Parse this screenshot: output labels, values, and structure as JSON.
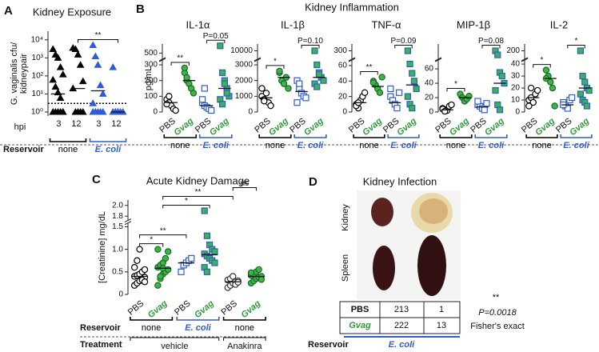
{
  "chart_data": [
    {
      "type": "dot",
      "panel": "A",
      "title": "Kidney Exposure",
      "y_label": [
        "G. vaginalis cfu/",
        "kidneypair"
      ],
      "x_label": "hpi",
      "log": true,
      "ylim": [
        0.6,
        30000
      ],
      "yticks": [
        {
          "value": 1,
          "label": "10⁰"
        },
        {
          "value": 10,
          "label": "10¹"
        },
        {
          "value": 100,
          "label": "10²"
        },
        {
          "value": 1000,
          "label": "10³"
        },
        {
          "value": 10000,
          "label": "10⁴"
        }
      ],
      "detection_limit": 3,
      "row_label": "Reservoir",
      "groups": [
        {
          "label": "3",
          "marker": "triangle",
          "fill": "#000000",
          "stroke": "#000000",
          "values": [
            3000,
            1500,
            1000,
            300,
            120,
            60,
            25,
            12,
            6,
            1,
            1,
            1,
            1,
            1,
            1
          ],
          "center": 10
        },
        {
          "label": "12",
          "marker": "triangle",
          "fill": "#000000",
          "stroke": "#000000",
          "values": [
            3500,
            3000,
            1500,
            400,
            50,
            20,
            1,
            1,
            1,
            1
          ],
          "center": 20
        },
        {
          "label": "3",
          "marker": "triangle",
          "fill": "#2e5bd6",
          "stroke": "#2e5bd6",
          "values": [
            5000,
            1200,
            400,
            30,
            10,
            3,
            1,
            1,
            1,
            1,
            1,
            1
          ],
          "center": 15
        },
        {
          "label": "12",
          "marker": "triangle",
          "fill": "#2e5bd6",
          "stroke": "#2e5bd6",
          "values": [
            300,
            1,
            1,
            1,
            1,
            1,
            1,
            1
          ],
          "center": 1
        }
      ],
      "reservoirs": [
        "none",
        "E. coli"
      ],
      "reservoir_colors": [
        "#000000",
        "#2e5bd6"
      ],
      "significance": [
        {
          "groups": [
            1,
            3
          ],
          "label": "**"
        }
      ]
    },
    {
      "type": "dot",
      "title": "IL-1α",
      "ylim": [
        0,
        600
      ],
      "axis_break": [
        320,
        450
      ],
      "yticks": [
        0,
        100,
        200,
        300,
        500
      ],
      "groups": [
        {
          "label": "PBS",
          "marker": "circle",
          "fill": "#ffffff",
          "stroke": "#000000",
          "values": [
            80,
            60,
            40,
            20,
            10,
            50,
            100
          ],
          "center": 60
        },
        {
          "label": "Gvag",
          "italic": true,
          "label_color": "#2e9a3a",
          "marker": "circle",
          "fill": "#3cb54a",
          "stroke": "#1a6b22",
          "values": [
            250,
            200,
            180,
            150,
            120,
            280,
            220
          ],
          "center": 200
        },
        {
          "label": "PBS",
          "marker": "square",
          "fill": "#ffffff",
          "stroke": "#2e5bd6",
          "values": [
            60,
            40,
            30,
            20,
            10,
            80,
            150
          ],
          "center": 40
        },
        {
          "label": "Gvag",
          "italic": true,
          "label_color": "#2e9a3a",
          "marker": "square",
          "fill": "#3cb54a",
          "stroke": "#2e5bd6",
          "values": [
            580,
            250,
            200,
            150,
            100,
            80,
            50,
            180,
            120
          ],
          "center": 150
        }
      ],
      "reservoirs": [
        "none",
        "E. coli"
      ],
      "reservoir_colors": [
        "#000000",
        "#2e5bd6"
      ],
      "significance": [
        {
          "groups": [
            0,
            1
          ],
          "label": "**"
        },
        {
          "groups": [
            2,
            3
          ],
          "label": "P=0.05"
        }
      ]
    },
    {
      "type": "dot",
      "title": "IL-1β",
      "ylim": [
        0,
        11000
      ],
      "axis_break": [
        3200,
        9000
      ],
      "yticks": [
        0,
        1000,
        2000,
        3000,
        10000
      ],
      "groups": [
        {
          "label": "PBS",
          "marker": "circle",
          "fill": "#ffffff",
          "stroke": "#000000",
          "values": [
            1000,
            800,
            1200,
            600,
            400,
            1500,
            700
          ],
          "center": 900
        },
        {
          "label": "Gvag",
          "italic": true,
          "label_color": "#2e9a3a",
          "marker": "circle",
          "fill": "#3cb54a",
          "stroke": "#1a6b22",
          "values": [
            2500,
            2000,
            1800,
            2200,
            1500,
            2600
          ],
          "center": 2200
        },
        {
          "label": "PBS",
          "marker": "square",
          "fill": "#ffffff",
          "stroke": "#2e5bd6",
          "values": [
            2000,
            1500,
            1200,
            1000,
            900,
            600,
            1800
          ],
          "center": 1300
        },
        {
          "label": "Gvag",
          "italic": true,
          "label_color": "#2e9a3a",
          "marker": "square",
          "fill": "#3cb54a",
          "stroke": "#2e5bd6",
          "values": [
            10000,
            3000,
            2500,
            2200,
            2000,
            1800,
            1600,
            2400
          ],
          "center": 2200
        }
      ],
      "reservoirs": [
        "none",
        "E. coli"
      ],
      "reservoir_colors": [
        "#000000",
        "#2e5bd6"
      ],
      "significance": [
        {
          "groups": [
            0,
            1
          ],
          "label": "*"
        },
        {
          "groups": [
            2,
            3
          ],
          "label": "P=0.10"
        }
      ]
    },
    {
      "type": "dot",
      "title": "TNF-α",
      "ylim": [
        0,
        350
      ],
      "axis_break": [
        65,
        250
      ],
      "yticks": [
        0,
        20,
        40,
        60,
        300
      ],
      "groups": [
        {
          "label": "PBS",
          "marker": "circle",
          "fill": "#ffffff",
          "stroke": "#000000",
          "values": [
            10,
            5,
            15,
            20,
            25,
            8,
            12
          ],
          "center": 12
        },
        {
          "label": "Gvag",
          "italic": true,
          "label_color": "#2e9a3a",
          "marker": "circle",
          "fill": "#3cb54a",
          "stroke": "#1a6b22",
          "values": [
            40,
            35,
            30,
            25,
            45,
            38
          ],
          "center": 33
        },
        {
          "label": "PBS",
          "marker": "square",
          "fill": "#ffffff",
          "stroke": "#2e5bd6",
          "values": [
            20,
            15,
            10,
            5,
            25,
            30
          ],
          "center": 12
        },
        {
          "label": "Gvag",
          "italic": true,
          "label_color": "#2e9a3a",
          "marker": "square",
          "fill": "#3cb54a",
          "stroke": "#2e5bd6",
          "values": [
            300,
            62,
            50,
            40,
            30,
            20,
            10,
            5
          ],
          "center": 35
        }
      ],
      "reservoirs": [
        "none",
        "E. coli"
      ],
      "reservoir_colors": [
        "#000000",
        "#2e5bd6"
      ],
      "significance": [
        {
          "groups": [
            0,
            1
          ],
          "label": "**"
        },
        {
          "groups": [
            2,
            3
          ],
          "label": "P=0.09"
        }
      ]
    },
    {
      "type": "dot",
      "title": "MIP-1β",
      "ylim": [
        0,
        100
      ],
      "axis_break": [
        70,
        90
      ],
      "yticks": [
        0,
        20,
        40,
        60
      ],
      "groups": [
        {
          "label": "PBS",
          "marker": "circle",
          "fill": "#ffffff",
          "stroke": "#000000",
          "values": [
            5,
            3,
            2,
            8,
            10,
            4,
            1
          ],
          "center": 3
        },
        {
          "label": "Gvag",
          "italic": true,
          "label_color": "#2e9a3a",
          "marker": "circle",
          "fill": "#3cb54a",
          "stroke": "#1a6b22",
          "values": [
            25,
            20,
            15,
            18,
            22
          ],
          "center": 20
        },
        {
          "label": "PBS",
          "marker": "square",
          "fill": "#ffffff",
          "stroke": "#2e5bd6",
          "values": [
            10,
            8,
            5,
            3,
            12,
            15
          ],
          "center": 7
        },
        {
          "label": "Gvag",
          "italic": true,
          "label_color": "#2e9a3a",
          "marker": "square",
          "fill": "#3cb54a",
          "stroke": "#2e5bd6",
          "values": [
            95,
            92,
            55,
            50,
            40,
            30,
            10,
            3
          ],
          "center": 40
        }
      ],
      "reservoirs": [
        "none",
        "E. coli"
      ],
      "reservoir_colors": [
        "#000000",
        "#2e5bd6"
      ],
      "significance": [
        {
          "groups": [
            0,
            1
          ],
          "label": "*"
        },
        {
          "groups": [
            2,
            3
          ],
          "label": "P=0.08"
        }
      ]
    },
    {
      "type": "dot",
      "title": "IL-2",
      "ylim": [
        0,
        220
      ],
      "axis_break": [
        42,
        180
      ],
      "yticks": [
        0,
        10,
        20,
        30,
        40,
        200
      ],
      "groups": [
        {
          "label": "PBS",
          "marker": "circle",
          "fill": "#ffffff",
          "stroke": "#000000",
          "values": [
            10,
            12,
            8,
            15,
            18,
            5,
            20
          ],
          "center": 12
        },
        {
          "label": "Gvag",
          "italic": true,
          "label_color": "#2e9a3a",
          "marker": "circle",
          "fill": "#3cb54a",
          "stroke": "#1a6b22",
          "values": [
            35,
            30,
            25,
            20,
            5,
            28
          ],
          "center": 28
        },
        {
          "label": "PBS",
          "marker": "square",
          "fill": "#ffffff",
          "stroke": "#2e5bd6",
          "values": [
            8,
            5,
            3,
            10,
            12,
            6
          ],
          "center": 6
        },
        {
          "label": "Gvag",
          "italic": true,
          "label_color": "#2e9a3a",
          "marker": "square",
          "fill": "#3cb54a",
          "stroke": "#2e5bd6",
          "values": [
            200,
            30,
            25,
            20,
            18,
            15,
            10,
            8,
            5
          ],
          "center": 20
        }
      ],
      "reservoirs": [
        "none",
        "E. coli"
      ],
      "reservoir_colors": [
        "#000000",
        "#2e5bd6"
      ],
      "significance": [
        {
          "groups": [
            0,
            1
          ],
          "label": "*"
        },
        {
          "groups": [
            2,
            3
          ],
          "label": "*"
        }
      ]
    },
    {
      "type": "dot",
      "panel": "C",
      "title": "Acute Kidney Damage",
      "y_label": [
        "[Creatinine] mg/dL"
      ],
      "ylim": [
        0,
        2.1
      ],
      "axis_break": [
        1.55,
        1.75
      ],
      "yticks": [
        0,
        0.5,
        {
          "value": 1,
          "label": "1.0"
        },
        {
          "value": 1.5,
          "label": "1.5"
        },
        {
          "value": 1.8,
          "label": "1.8"
        },
        {
          "value": 2,
          "label": "2.0"
        }
      ],
      "groups": [
        {
          "label": "PBS",
          "marker": "circle",
          "fill": "#ffffff",
          "stroke": "#000000",
          "values": [
            0.2,
            0.25,
            0.3,
            0.35,
            0.38,
            0.4,
            0.42,
            0.45,
            0.5,
            0.55,
            0.6,
            0.75,
            1.0,
            0.32,
            0.28
          ],
          "center": 0.4
        },
        {
          "label": "Gvag",
          "italic": true,
          "label_color": "#2e9a3a",
          "marker": "circle",
          "fill": "#3cb54a",
          "stroke": "#1a6b22",
          "values": [
            0.2,
            0.35,
            0.45,
            0.5,
            0.55,
            0.6,
            0.65,
            0.7,
            0.8,
            0.95,
            1.0,
            0.4,
            0.58
          ],
          "center": 0.58
        },
        {
          "label": "PBS",
          "marker": "square",
          "fill": "#ffffff",
          "stroke": "#2e5bd6",
          "values": [
            0.5,
            0.65,
            0.7,
            0.75,
            0.8
          ],
          "center": 0.7
        },
        {
          "label": "Gvag",
          "italic": true,
          "label_color": "#2e9a3a",
          "marker": "square",
          "fill": "#3cb54a",
          "stroke": "#2e5bd6",
          "values": [
            1.9,
            1.3,
            1.1,
            1.0,
            0.95,
            0.9,
            0.85,
            0.8,
            0.75,
            0.7,
            0.6,
            0.5
          ],
          "center": 0.88
        },
        {
          "label": "PBS",
          "marker": "circle",
          "fill": "#ffffff",
          "stroke": "#333333",
          "values": [
            0.15,
            0.2,
            0.25,
            0.28,
            0.3,
            0.32,
            0.35,
            0.4,
            0.22,
            0.27
          ],
          "center": 0.28
        },
        {
          "label": "Gvag",
          "italic": true,
          "label_color": "#2e9a3a",
          "marker": "circle",
          "fill": "#3cb54a",
          "stroke": "#1a6b22",
          "values": [
            0.25,
            0.3,
            0.35,
            0.38,
            0.4,
            0.42,
            0.45,
            0.5,
            0.55,
            0.33,
            0.48
          ],
          "center": 0.4
        }
      ],
      "reservoirs": [
        "none",
        "E. coli",
        "none"
      ],
      "reservoir_colors": [
        "#000000",
        "#2e5bd6",
        "#000000"
      ],
      "row_labels": [
        "Reservoir",
        "Treatment"
      ],
      "treatments": [
        {
          "label": "vehicle",
          "groups": [
            0,
            3
          ]
        },
        {
          "label": "Anakinra",
          "groups": [
            4,
            5
          ]
        }
      ],
      "significance": [
        {
          "groups": [
            0,
            1
          ],
          "label": "*"
        },
        {
          "groups": [
            0,
            2
          ],
          "label": "**"
        },
        {
          "groups": [
            1,
            3
          ],
          "label": "*"
        },
        {
          "groups": [
            1,
            4
          ],
          "label": "**"
        },
        {
          "groups": [
            4,
            5
          ],
          "label": "ns"
        }
      ]
    }
  ],
  "panel_b": {
    "panel": "B",
    "title": "Kidney Inflammation",
    "y_label": "pg/mL"
  },
  "panel_d": {
    "panel": "D",
    "title": "Kidney Infection",
    "organs": [
      "Kidney",
      "Spleen"
    ],
    "table": {
      "rows": [
        [
          "PBS",
          213,
          1
        ],
        [
          "Gvag",
          222,
          13
        ]
      ]
    },
    "significance": "**",
    "p_value": "P=0.0018",
    "test": "Fisher's exact",
    "reservoir_label": "Reservoir",
    "reservoir": "E. coli"
  }
}
